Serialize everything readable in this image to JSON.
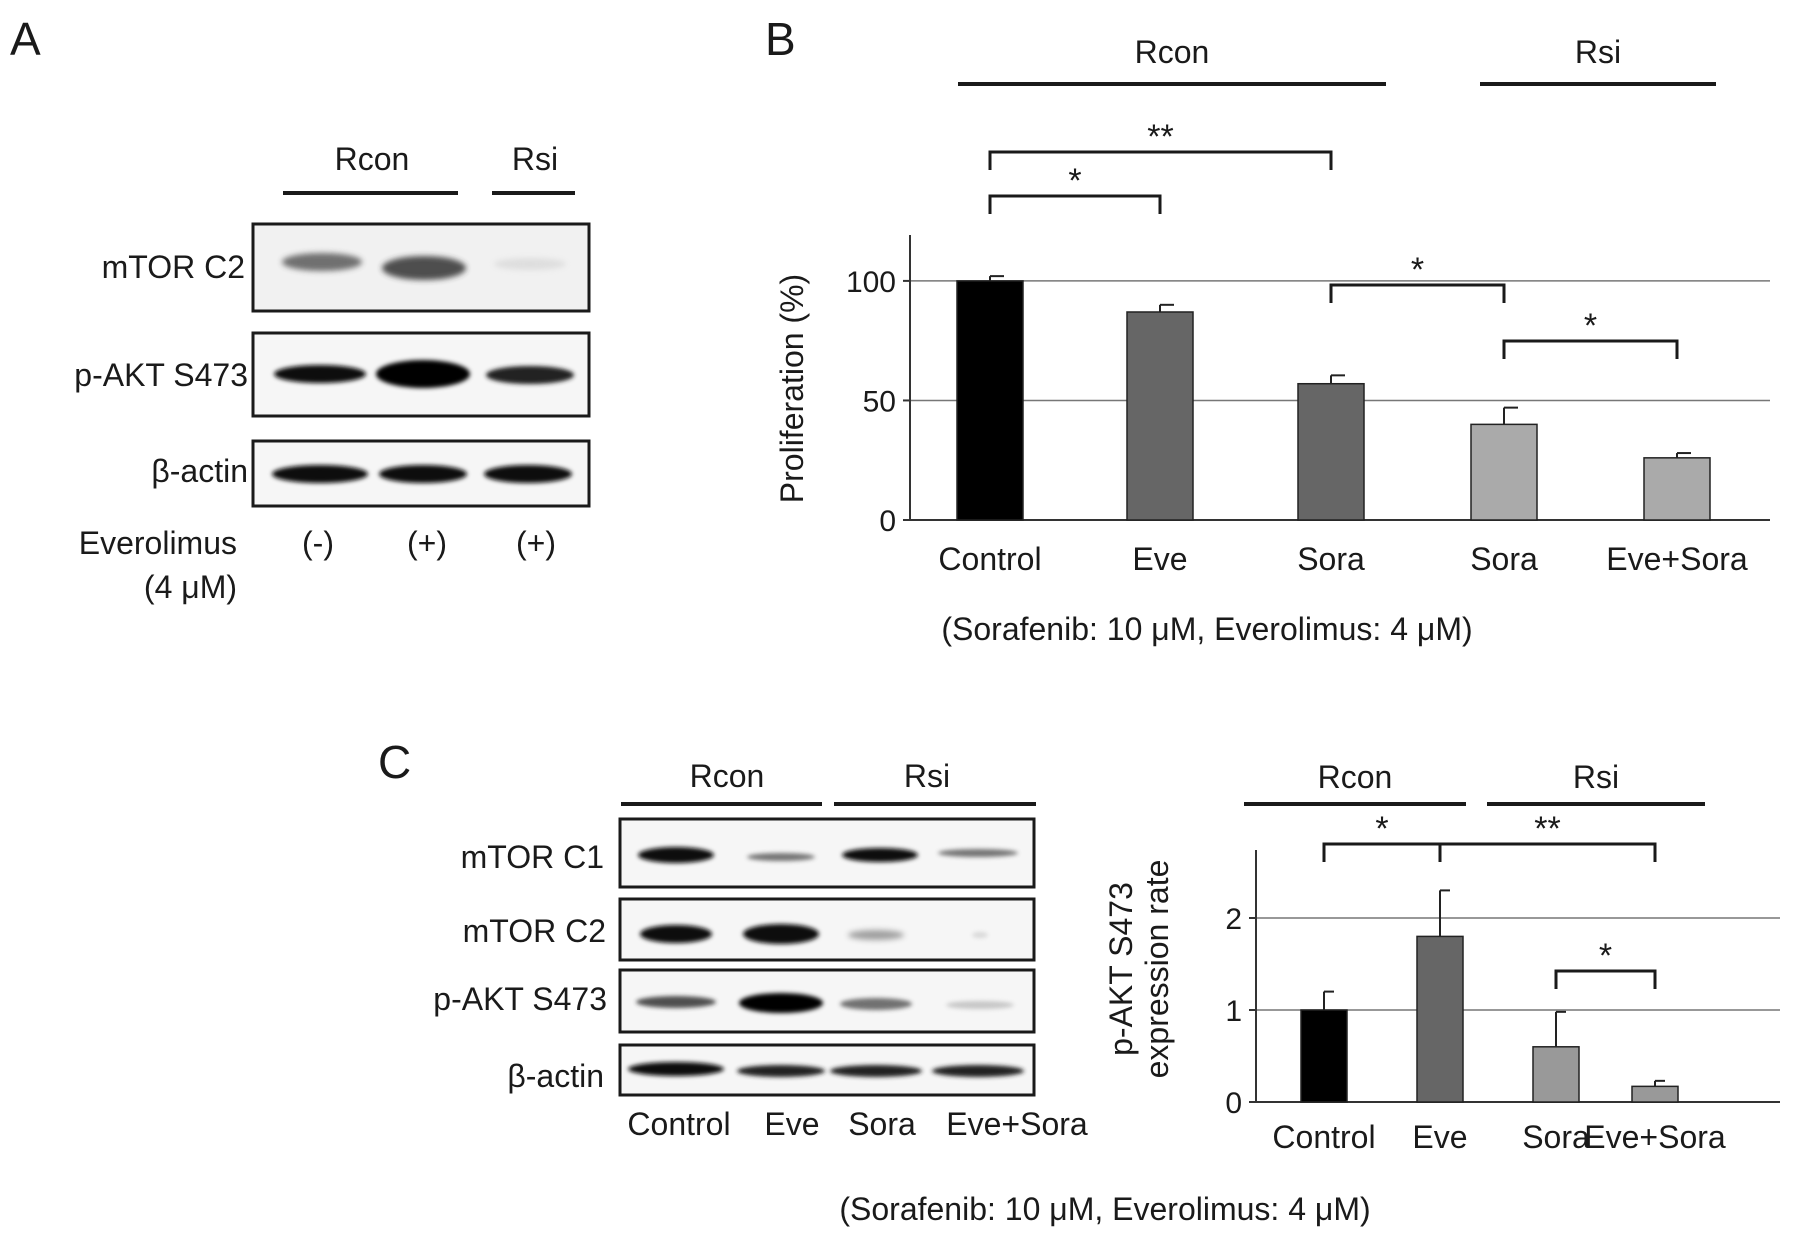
{
  "panel_labels": {
    "a": "A",
    "b": "B",
    "c": "C"
  },
  "panel_a": {
    "groups": [
      "Rcon",
      "Rsi"
    ],
    "rows": [
      "mTOR C2",
      "p-AKT S473",
      "β-actin"
    ],
    "treatment_label_line1": "Everolimus",
    "treatment_label_line2": "(4 μM)",
    "lanes": [
      "(-)",
      "(+)",
      "(+)"
    ]
  },
  "panel_c_blot": {
    "groups": [
      "Rcon",
      "Rsi"
    ],
    "rows": [
      "mTOR C1",
      "mTOR C2",
      "p-AKT S473",
      "β-actin"
    ],
    "lanes": [
      "Control",
      "Eve",
      "Sora",
      "Eve+Sora"
    ],
    "footnote": "(Sorafenib: 10 μM, Everolimus: 4 μM)"
  },
  "chart_data": [
    {
      "panel": "B",
      "type": "bar",
      "categories": [
        "Control",
        "Eve",
        "Sora",
        "Sora",
        "Eve+Sora"
      ],
      "values": [
        100,
        87,
        57,
        40,
        26
      ],
      "errors": [
        2,
        3,
        3.5,
        7,
        2
      ],
      "bar_colors": [
        "#000000",
        "#666666",
        "#666666",
        "#aaaaaa",
        "#aaaaaa"
      ],
      "ylabel": "Proliferation (%)",
      "yticks": [
        "0",
        "50",
        "100"
      ],
      "ylim": [
        0,
        110
      ],
      "groups": [
        {
          "label": "Rcon",
          "from": 0,
          "to": 2
        },
        {
          "label": "Rsi",
          "from": 3,
          "to": 4
        }
      ],
      "significance": [
        {
          "from": 0,
          "to": 1,
          "mark": "*"
        },
        {
          "from": 0,
          "to": 2,
          "mark": "**"
        },
        {
          "from": 2,
          "to": 3,
          "mark": "*"
        },
        {
          "from": 3,
          "to": 4,
          "mark": "*"
        }
      ],
      "note": "(Sorafenib: 10 μM, Everolimus: 4 μM)"
    },
    {
      "panel": "C",
      "type": "bar",
      "categories": [
        "Control",
        "Eve",
        "Sora",
        "Eve+Sora"
      ],
      "values": [
        1.0,
        1.8,
        0.6,
        0.17
      ],
      "errors": [
        0.2,
        0.5,
        0.38,
        0.06
      ],
      "bar_colors": [
        "#000000",
        "#666666",
        "#999999",
        "#999999"
      ],
      "ylabel_line1": "p-AKT S473",
      "ylabel_line2": "expression rate",
      "yticks": [
        "0",
        "1",
        "2"
      ],
      "ylim": [
        0,
        2.5
      ],
      "groups": [
        {
          "label": "Rcon",
          "from": 0,
          "to": 1
        },
        {
          "label": "Rsi",
          "from": 2,
          "to": 3
        }
      ],
      "significance": [
        {
          "from": 0,
          "to": 1,
          "mark": "*"
        },
        {
          "from": 1,
          "to": 3,
          "mark": "**"
        },
        {
          "from": 2,
          "to": 3,
          "mark": "*"
        }
      ]
    }
  ]
}
